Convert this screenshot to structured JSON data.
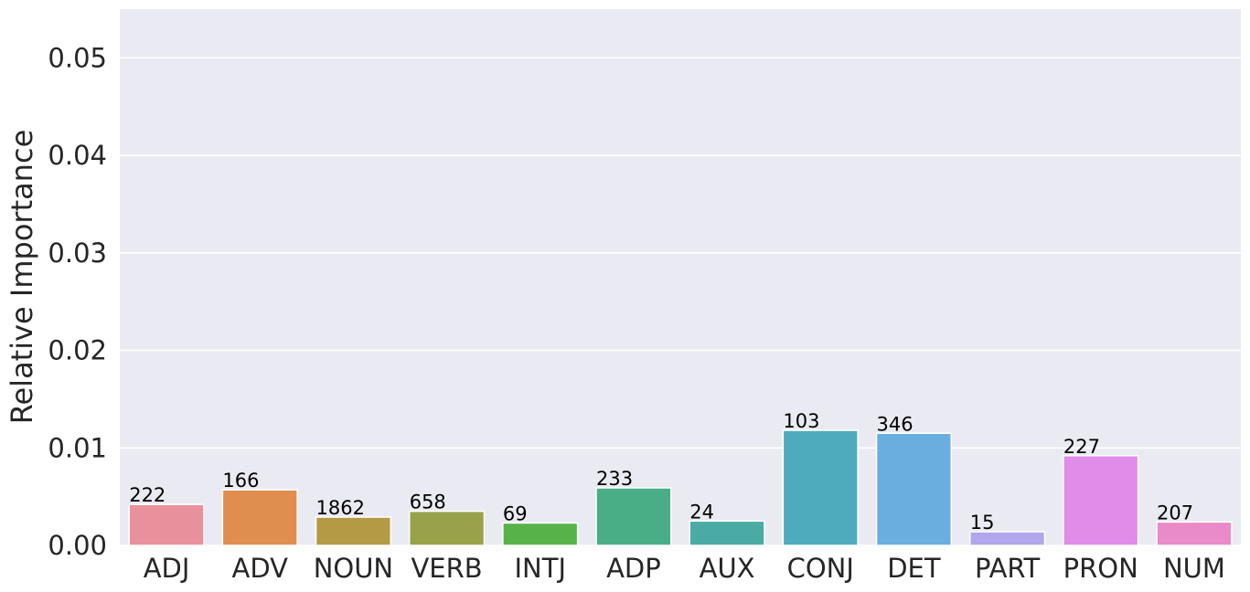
{
  "chart_data": {
    "type": "bar",
    "title": "",
    "xlabel": "",
    "ylabel": "Relative Importance",
    "ylim": [
      0,
      0.055
    ],
    "yticks": [
      "0.00",
      "0.01",
      "0.02",
      "0.03",
      "0.04",
      "0.05"
    ],
    "ytick_values": [
      0,
      0.01,
      0.02,
      0.03,
      0.04,
      0.05
    ],
    "grid": true,
    "legend": "none",
    "categories": [
      "ADJ",
      "ADV",
      "NOUN",
      "VERB",
      "INTJ",
      "ADP",
      "AUX",
      "CONJ",
      "DET",
      "PART",
      "PRON",
      "NUM"
    ],
    "values": [
      0.0042,
      0.0057,
      0.0029,
      0.0035,
      0.0023,
      0.0059,
      0.0025,
      0.0118,
      0.0115,
      0.0014,
      0.0092,
      0.0024
    ],
    "counts": [
      "222",
      "166",
      "1862",
      "658",
      "69",
      "233",
      "24",
      "103",
      "346",
      "15",
      "227",
      "207"
    ],
    "colors": [
      "#e8919c",
      "#e08e4f",
      "#b59a45",
      "#99a24a",
      "#57b349",
      "#49ae86",
      "#4aaba5",
      "#4dabbd",
      "#6aaee0",
      "#b2a6ea",
      "#e08ce8",
      "#e88bc8"
    ],
    "plot_background": "#eaeaf2",
    "grid_color": "#ffffff"
  }
}
